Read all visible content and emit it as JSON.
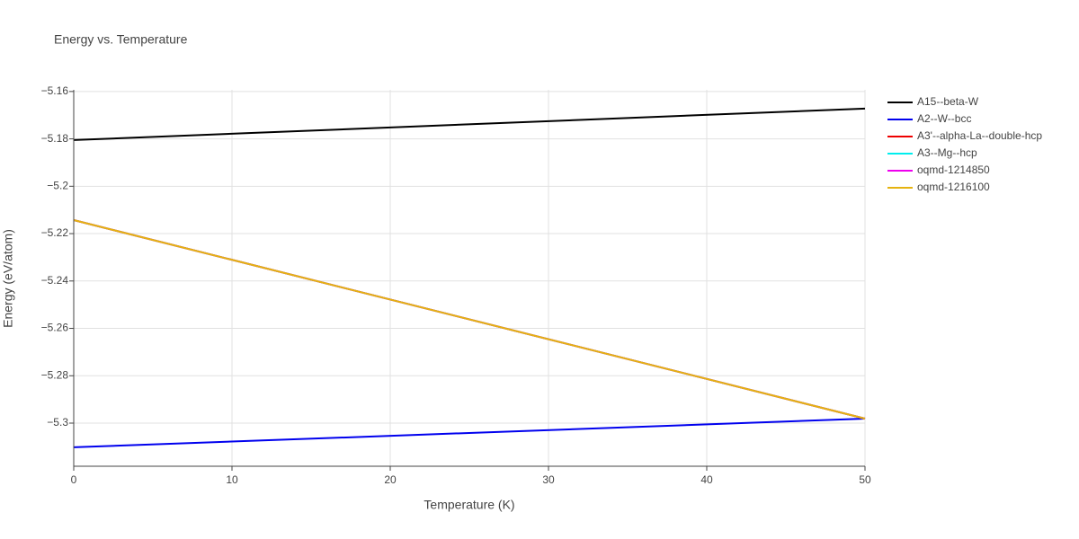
{
  "chart_data": {
    "type": "line",
    "title": "Energy vs. Temperature",
    "x_label": "Temperature (K)",
    "y_label": "Energy (eV/atom)",
    "x": [
      0,
      50
    ],
    "series": [
      {
        "name": "A15--beta-W",
        "color": "#000000",
        "values": [
          -5.1805,
          -5.1672
        ]
      },
      {
        "name": "A2--W--bcc",
        "color": "#0000ee",
        "values": [
          -5.3102,
          -5.2981
        ]
      },
      {
        "name": "A3'--alpha-La--double-hcp",
        "color": "#ee0000",
        "values": [
          -5.2143,
          -5.2981
        ]
      },
      {
        "name": "A3--Mg--hcp",
        "color": "#00eeee",
        "values": [
          -5.2143,
          -5.2981
        ]
      },
      {
        "name": "oqmd-1214850",
        "color": "#ee00ee",
        "values": [
          -5.2143,
          -5.2981
        ]
      },
      {
        "name": "oqmd-1216100",
        "color": "#e6b30f",
        "values": [
          -5.2143,
          -5.2981
        ]
      }
    ],
    "xlim": [
      0,
      50
    ],
    "xticks": [
      0,
      10,
      20,
      30,
      40,
      50
    ],
    "ylim": [
      -5.3182,
      -5.1593
    ],
    "yticks": [
      {
        "value": -5.3,
        "label": "−5.3"
      },
      {
        "value": -5.28,
        "label": "−5.28"
      },
      {
        "value": -5.26,
        "label": "−5.26"
      },
      {
        "value": -5.24,
        "label": "−5.24"
      },
      {
        "value": -5.22,
        "label": "−5.22"
      },
      {
        "value": -5.2,
        "label": "−5.2"
      },
      {
        "value": -5.18,
        "label": "−5.18"
      },
      {
        "value": -5.16,
        "label": "−5.16"
      }
    ],
    "grid": true,
    "legend": "right"
  }
}
